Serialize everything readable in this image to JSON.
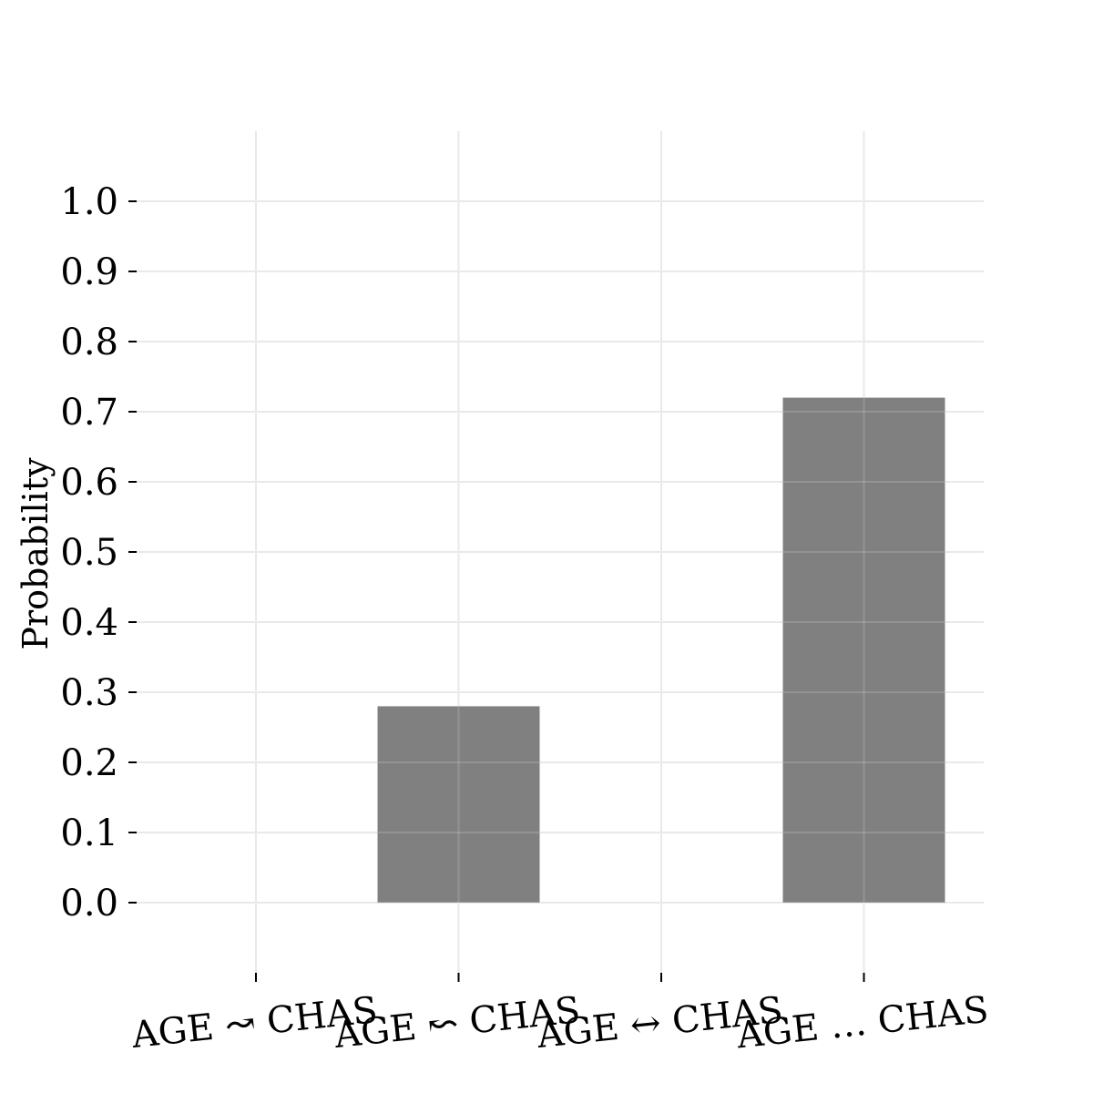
{
  "chart_data": {
    "type": "bar",
    "categories": [
      "AGE ↝ CHAS",
      "AGE ↜ CHAS",
      "AGE ↔ CHAS",
      "AGE … CHAS"
    ],
    "values": [
      0.0,
      0.28,
      0.0,
      0.72
    ],
    "title": "",
    "xlabel": "",
    "ylabel": "Probability",
    "ylim": [
      -0.1,
      1.1
    ],
    "yticks": [
      "0.0",
      "0.1",
      "0.2",
      "0.3",
      "0.4",
      "0.5",
      "0.6",
      "0.7",
      "0.8",
      "0.9",
      "1.0"
    ],
    "grid": true,
    "bar_color": "#808080",
    "grid_color": "#e6e6e6"
  }
}
